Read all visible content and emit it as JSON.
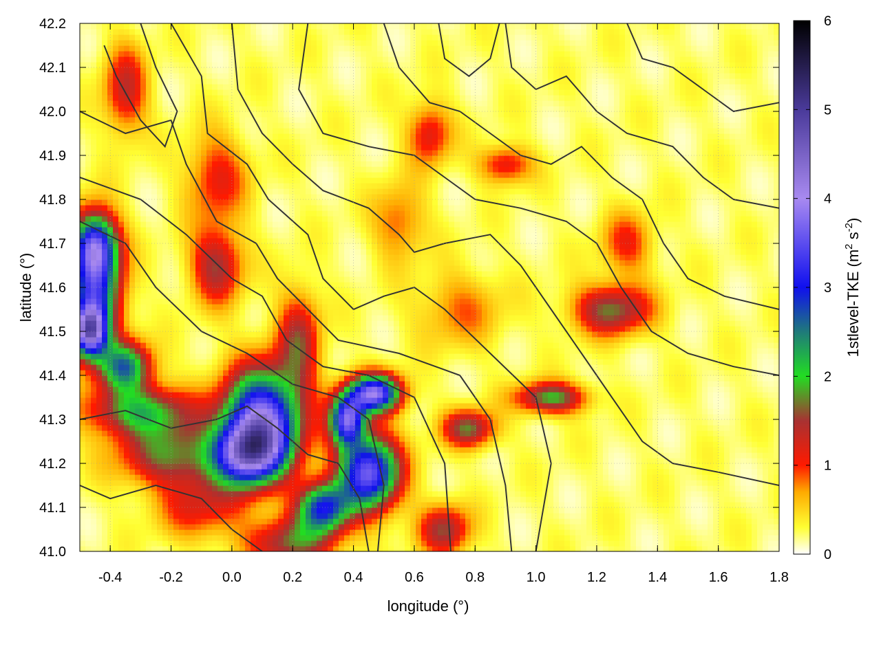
{
  "chart_data": {
    "type": "heatmap",
    "title": "",
    "xlabel": "longitude (°)",
    "ylabel": "latitude (°)",
    "colorbar_label_parts": [
      "1stlevel-TKE (m",
      "2",
      " s",
      "-2",
      ")"
    ],
    "xlim": [
      -0.5,
      1.8
    ],
    "ylim": [
      41.0,
      42.2
    ],
    "x_ticks": [
      -0.4,
      -0.2,
      0.0,
      0.2,
      0.4,
      0.6,
      0.8,
      1.0,
      1.2,
      1.4,
      1.6,
      1.8
    ],
    "x_tick_labels": [
      "-0.4",
      "-0.2",
      "0.0",
      "0.2",
      "0.4",
      "0.6",
      "0.8",
      "1.0",
      "1.2",
      "1.4",
      "1.6",
      "1.8"
    ],
    "y_ticks": [
      41.0,
      41.1,
      41.2,
      41.3,
      41.4,
      41.5,
      41.6,
      41.7,
      41.8,
      41.9,
      42.0,
      42.1,
      42.2
    ],
    "y_tick_labels": [
      "41.0",
      "41.1",
      "41.2",
      "41.3",
      "41.4",
      "41.5",
      "41.6",
      "41.7",
      "41.8",
      "41.9",
      "42.0",
      "42.1",
      "42.2"
    ],
    "colorbar": {
      "range": [
        0,
        6
      ],
      "ticks": [
        0,
        1,
        2,
        3,
        4,
        5,
        6
      ],
      "tick_labels": [
        "0",
        "1",
        "2",
        "3",
        "4",
        "5",
        "6"
      ],
      "palette": [
        {
          "value": 0.0,
          "color": "#ffffff"
        },
        {
          "value": 0.3,
          "color": "#ffff33"
        },
        {
          "value": 0.7,
          "color": "#ffaa00"
        },
        {
          "value": 1.0,
          "color": "#ff1a00"
        },
        {
          "value": 1.5,
          "color": "#a83232"
        },
        {
          "value": 2.0,
          "color": "#22dd22"
        },
        {
          "value": 2.5,
          "color": "#1f7a7a"
        },
        {
          "value": 3.0,
          "color": "#1010ee"
        },
        {
          "value": 4.0,
          "color": "#a88af0"
        },
        {
          "value": 5.0,
          "color": "#4a3a9a"
        },
        {
          "value": 6.0,
          "color": "#000000"
        }
      ]
    },
    "grid": true,
    "legend": "none",
    "features": [
      {
        "lon": 0.1,
        "lat": 41.3,
        "value": 3.6,
        "sx": 0.09,
        "sy": 0.08
      },
      {
        "lon": 0.05,
        "lat": 41.22,
        "value": 2.8,
        "sx": 0.08,
        "sy": 0.05
      },
      {
        "lon": 0.45,
        "lat": 41.18,
        "value": 3.4,
        "sx": 0.07,
        "sy": 0.06
      },
      {
        "lon": 0.3,
        "lat": 41.1,
        "value": 2.6,
        "sx": 0.06,
        "sy": 0.04
      },
      {
        "lon": 0.47,
        "lat": 41.36,
        "value": 3.5,
        "sx": 0.06,
        "sy": 0.03
      },
      {
        "lon": 0.38,
        "lat": 41.3,
        "value": 3.2,
        "sx": 0.04,
        "sy": 0.04
      },
      {
        "lon": -0.45,
        "lat": 41.6,
        "value": 2.7,
        "sx": 0.06,
        "sy": 0.09
      },
      {
        "lon": -0.47,
        "lat": 41.5,
        "value": 3.4,
        "sx": 0.04,
        "sy": 0.04
      },
      {
        "lon": -0.45,
        "lat": 41.7,
        "value": 2.3,
        "sx": 0.05,
        "sy": 0.05
      },
      {
        "lon": -0.35,
        "lat": 41.42,
        "value": 2.2,
        "sx": 0.06,
        "sy": 0.04
      },
      {
        "lon": -0.3,
        "lat": 41.32,
        "value": 1.8,
        "sx": 0.12,
        "sy": 0.04
      },
      {
        "lon": -0.2,
        "lat": 41.22,
        "value": 1.5,
        "sx": 0.12,
        "sy": 0.05
      },
      {
        "lon": 0.22,
        "lat": 41.48,
        "value": 1.2,
        "sx": 0.05,
        "sy": 0.08
      },
      {
        "lon": -0.05,
        "lat": 41.65,
        "value": 1.3,
        "sx": 0.06,
        "sy": 0.06
      },
      {
        "lon": -0.35,
        "lat": 42.05,
        "value": 1.1,
        "sx": 0.05,
        "sy": 0.07
      },
      {
        "lon": -0.05,
        "lat": 41.85,
        "value": 0.9,
        "sx": 0.07,
        "sy": 0.07
      },
      {
        "lon": 1.25,
        "lat": 41.55,
        "value": 1.5,
        "sx": 0.09,
        "sy": 0.04
      },
      {
        "lon": 1.05,
        "lat": 41.35,
        "value": 1.7,
        "sx": 0.08,
        "sy": 0.025
      },
      {
        "lon": 0.78,
        "lat": 41.28,
        "value": 1.5,
        "sx": 0.06,
        "sy": 0.03
      },
      {
        "lon": 0.7,
        "lat": 41.05,
        "value": 1.3,
        "sx": 0.06,
        "sy": 0.04
      },
      {
        "lon": 0.65,
        "lat": 41.95,
        "value": 1.0,
        "sx": 0.05,
        "sy": 0.05
      },
      {
        "lon": 0.9,
        "lat": 41.88,
        "value": 1.0,
        "sx": 0.06,
        "sy": 0.03
      },
      {
        "lon": 1.3,
        "lat": 41.7,
        "value": 0.8,
        "sx": 0.06,
        "sy": 0.05
      },
      {
        "lon": 0.55,
        "lat": 41.75,
        "value": 0.7,
        "sx": 0.06,
        "sy": 0.06
      },
      {
        "lon": 0.75,
        "lat": 41.55,
        "value": 0.6,
        "sx": 0.1,
        "sy": 0.06
      },
      {
        "lon": 0.2,
        "lat": 41.02,
        "value": 1.4,
        "sx": 0.1,
        "sy": 0.04
      },
      {
        "lon": -0.1,
        "lat": 41.1,
        "value": 0.9,
        "sx": 0.1,
        "sy": 0.05
      }
    ],
    "contours": [
      [
        [
          -0.5,
          41.75
        ],
        [
          -0.35,
          41.7
        ],
        [
          -0.25,
          41.6
        ],
        [
          -0.1,
          41.5
        ],
        [
          0.05,
          41.45
        ],
        [
          0.2,
          41.38
        ],
        [
          0.35,
          41.35
        ],
        [
          0.45,
          41.3
        ],
        [
          0.5,
          41.15
        ],
        [
          0.48,
          41.0
        ]
      ],
      [
        [
          -0.5,
          41.85
        ],
        [
          -0.3,
          41.8
        ],
        [
          -0.15,
          41.72
        ],
        [
          0.0,
          41.62
        ],
        [
          0.1,
          41.58
        ],
        [
          0.18,
          41.48
        ],
        [
          0.3,
          41.42
        ],
        [
          0.45,
          41.4
        ],
        [
          0.6,
          41.35
        ],
        [
          0.7,
          41.2
        ],
        [
          0.72,
          41.0
        ]
      ],
      [
        [
          -0.5,
          42.0
        ],
        [
          -0.35,
          41.95
        ],
        [
          -0.2,
          41.98
        ],
        [
          -0.15,
          41.88
        ],
        [
          -0.05,
          41.75
        ],
        [
          0.08,
          41.7
        ],
        [
          0.15,
          41.62
        ],
        [
          0.25,
          41.55
        ],
        [
          0.35,
          41.48
        ],
        [
          0.55,
          41.45
        ],
        [
          0.75,
          41.4
        ],
        [
          0.85,
          41.3
        ],
        [
          0.9,
          41.15
        ],
        [
          0.92,
          41.0
        ]
      ],
      [
        [
          -0.2,
          42.2
        ],
        [
          -0.1,
          42.08
        ],
        [
          -0.08,
          41.95
        ],
        [
          0.05,
          41.88
        ],
        [
          0.12,
          41.8
        ],
        [
          0.25,
          41.72
        ],
        [
          0.3,
          41.62
        ],
        [
          0.4,
          41.55
        ],
        [
          0.5,
          41.58
        ],
        [
          0.6,
          41.6
        ],
        [
          0.7,
          41.55
        ],
        [
          0.85,
          41.45
        ],
        [
          1.0,
          41.35
        ],
        [
          1.05,
          41.2
        ],
        [
          1.0,
          41.0
        ]
      ],
      [
        [
          0.0,
          42.2
        ],
        [
          0.02,
          42.05
        ],
        [
          0.1,
          41.95
        ],
        [
          0.2,
          41.88
        ],
        [
          0.3,
          41.82
        ],
        [
          0.45,
          41.78
        ],
        [
          0.55,
          41.72
        ],
        [
          0.6,
          41.68
        ],
        [
          0.7,
          41.7
        ],
        [
          0.85,
          41.72
        ],
        [
          0.95,
          41.65
        ],
        [
          1.05,
          41.55
        ],
        [
          1.15,
          41.45
        ],
        [
          1.25,
          41.35
        ],
        [
          1.35,
          41.25
        ],
        [
          1.45,
          41.2
        ],
        [
          1.6,
          41.18
        ],
        [
          1.8,
          41.15
        ]
      ],
      [
        [
          0.25,
          42.2
        ],
        [
          0.22,
          42.05
        ],
        [
          0.3,
          41.95
        ],
        [
          0.45,
          41.92
        ],
        [
          0.6,
          41.9
        ],
        [
          0.7,
          41.85
        ],
        [
          0.8,
          41.8
        ],
        [
          0.95,
          41.78
        ],
        [
          1.1,
          41.75
        ],
        [
          1.2,
          41.7
        ],
        [
          1.28,
          41.6
        ],
        [
          1.38,
          41.5
        ],
        [
          1.5,
          41.45
        ],
        [
          1.65,
          41.42
        ],
        [
          1.8,
          41.4
        ]
      ],
      [
        [
          0.5,
          42.2
        ],
        [
          0.55,
          42.1
        ],
        [
          0.65,
          42.02
        ],
        [
          0.75,
          42.0
        ],
        [
          0.85,
          41.95
        ],
        [
          0.95,
          41.9
        ],
        [
          1.05,
          41.88
        ],
        [
          1.15,
          41.92
        ],
        [
          1.25,
          41.85
        ],
        [
          1.35,
          41.8
        ],
        [
          1.42,
          41.7
        ],
        [
          1.5,
          41.62
        ],
        [
          1.62,
          41.58
        ],
        [
          1.8,
          41.55
        ]
      ],
      [
        [
          0.9,
          42.2
        ],
        [
          0.92,
          42.1
        ],
        [
          1.0,
          42.05
        ],
        [
          1.1,
          42.08
        ],
        [
          1.2,
          42.0
        ],
        [
          1.3,
          41.95
        ],
        [
          1.45,
          41.92
        ],
        [
          1.55,
          41.85
        ],
        [
          1.65,
          41.8
        ],
        [
          1.8,
          41.78
        ]
      ],
      [
        [
          1.3,
          42.2
        ],
        [
          1.35,
          42.12
        ],
        [
          1.45,
          42.1
        ],
        [
          1.55,
          42.05
        ],
        [
          1.65,
          42.0
        ],
        [
          1.8,
          42.02
        ]
      ],
      [
        [
          -0.5,
          41.3
        ],
        [
          -0.35,
          41.32
        ],
        [
          -0.2,
          41.28
        ],
        [
          -0.05,
          41.3
        ],
        [
          0.05,
          41.33
        ],
        [
          0.15,
          41.28
        ],
        [
          0.25,
          41.22
        ],
        [
          0.35,
          41.2
        ],
        [
          0.42,
          41.12
        ],
        [
          0.45,
          41.0
        ]
      ],
      [
        [
          -0.5,
          41.15
        ],
        [
          -0.4,
          41.12
        ],
        [
          -0.25,
          41.15
        ],
        [
          -0.1,
          41.12
        ],
        [
          0.0,
          41.05
        ],
        [
          0.1,
          41.0
        ]
      ],
      [
        [
          0.68,
          42.2
        ],
        [
          0.7,
          42.12
        ],
        [
          0.78,
          42.08
        ],
        [
          0.85,
          42.12
        ],
        [
          0.88,
          42.2
        ]
      ],
      [
        [
          -0.42,
          42.15
        ],
        [
          -0.38,
          42.08
        ],
        [
          -0.3,
          41.98
        ],
        [
          -0.22,
          41.92
        ],
        [
          -0.18,
          42.0
        ],
        [
          -0.25,
          42.1
        ],
        [
          -0.3,
          42.2
        ]
      ]
    ]
  }
}
